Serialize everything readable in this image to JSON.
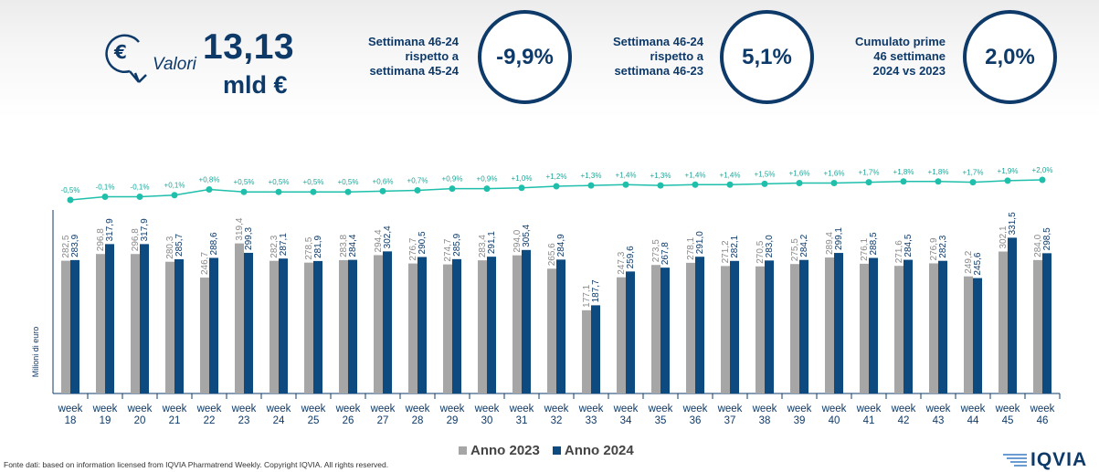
{
  "header": {
    "icon_name": "euro-coin-down-arrow-icon",
    "values_label": "Valori",
    "total_value": "13,13",
    "total_unit": "mld €",
    "comparisons": [
      {
        "lines": [
          "Settimana 46-24",
          "rispetto a",
          "settimana 45-24"
        ],
        "value": "-9,9%"
      },
      {
        "lines": [
          "Settimana 46-24",
          "rispetto a",
          "settimana 46-23"
        ],
        "value": "5,1%"
      },
      {
        "lines": [
          "Cumulato prime",
          "46 settimane",
          "2024 vs 2023"
        ],
        "value": "2,0%"
      }
    ]
  },
  "colors": {
    "anno_2023": "#a6a6a6",
    "anno_2024": "#0c4a80",
    "cumulative_line": "#1fbfab",
    "text": "#0e3a6a"
  },
  "chart_data": {
    "type": "bar",
    "ylabel": "Milioni di euro",
    "ylim": [
      0,
      340
    ],
    "categories": [
      "week 18",
      "week 19",
      "week 20",
      "week 21",
      "week 22",
      "week 23",
      "week 24",
      "week 25",
      "week 26",
      "week 27",
      "week 28",
      "week 29",
      "week 30",
      "week 31",
      "week 32",
      "week 33",
      "week 34",
      "week 35",
      "week 36",
      "week 37",
      "week 38",
      "week 39",
      "week 40",
      "week 41",
      "week 42",
      "week 43",
      "week 44",
      "week 45",
      "week 46"
    ],
    "series": [
      {
        "name": "Anno 2023",
        "labels": [
          "282,5",
          "296,8",
          "296,8",
          "280,3",
          "246,7",
          "319,4",
          "282,3",
          "278,5",
          "283,8",
          "294,4",
          "276,7",
          "274,7",
          "283,4",
          "294,0",
          "265,6",
          "177,1",
          "247,3",
          "273,5",
          "278,1",
          "271,2",
          "270,5",
          "275,5",
          "289,4",
          "276,1",
          "271,6",
          "276,9",
          "249,2",
          "302,1",
          "284,0"
        ],
        "values": [
          282.5,
          296.8,
          296.8,
          280.3,
          246.7,
          319.4,
          282.3,
          278.5,
          283.8,
          294.4,
          276.7,
          274.7,
          283.4,
          294.0,
          265.6,
          177.1,
          247.3,
          273.5,
          278.1,
          271.2,
          270.5,
          275.5,
          289.4,
          276.1,
          271.6,
          276.9,
          249.2,
          302.1,
          284.0
        ]
      },
      {
        "name": "Anno 2024",
        "labels": [
          "283,9",
          "317,9",
          "317,9",
          "285,7",
          "288,6",
          "299,3",
          "287,1",
          "281,9",
          "284,4",
          "302,4",
          "290,5",
          "285,9",
          "291,1",
          "305,4",
          "284,9",
          "187,7",
          "259,6",
          "267,8",
          "291,0",
          "282,1",
          "283,0",
          "284,2",
          "299,1",
          "288,5",
          "284,5",
          "282,3",
          "245,6",
          "331,5",
          "298,5"
        ],
        "values": [
          283.9,
          317.9,
          317.9,
          285.7,
          288.6,
          299.3,
          287.1,
          281.9,
          284.4,
          302.4,
          290.5,
          285.9,
          291.1,
          305.4,
          284.9,
          187.7,
          259.6,
          267.8,
          291.0,
          282.1,
          283.0,
          284.2,
          299.1,
          288.5,
          284.5,
          282.3,
          245.6,
          331.5,
          298.5
        ]
      }
    ],
    "cumulative_change": {
      "labels": [
        "-0,5%",
        "-0,1%",
        "-0,1%",
        "+0,1%",
        "+0,8%",
        "+0,5%",
        "+0,5%",
        "+0,5%",
        "+0,5%",
        "+0,6%",
        "+0,7%",
        "+0,9%",
        "+0,9%",
        "+1,0%",
        "+1,2%",
        "+1,3%",
        "+1,4%",
        "+1,3%",
        "+1,4%",
        "+1,4%",
        "+1,5%",
        "+1,6%",
        "+1,6%",
        "+1,7%",
        "+1,8%",
        "+1,8%",
        "+1,7%",
        "+1,9%",
        "+2,0%"
      ],
      "values": [
        -0.5,
        -0.1,
        -0.1,
        0.1,
        0.8,
        0.5,
        0.5,
        0.5,
        0.5,
        0.6,
        0.7,
        0.9,
        0.9,
        1.0,
        1.2,
        1.3,
        1.4,
        1.3,
        1.4,
        1.4,
        1.5,
        1.6,
        1.6,
        1.7,
        1.8,
        1.8,
        1.7,
        1.9,
        2.0
      ]
    },
    "legend": [
      "Anno 2023",
      "Anno 2024"
    ],
    "legend_position": "bottom-center"
  },
  "footer": {
    "source": "Fonte dati: based on information licensed from IQVIA Pharmatrend Weekly. Copyright IQVIA. All rights reserved.",
    "logo_text": "IQVIA"
  }
}
